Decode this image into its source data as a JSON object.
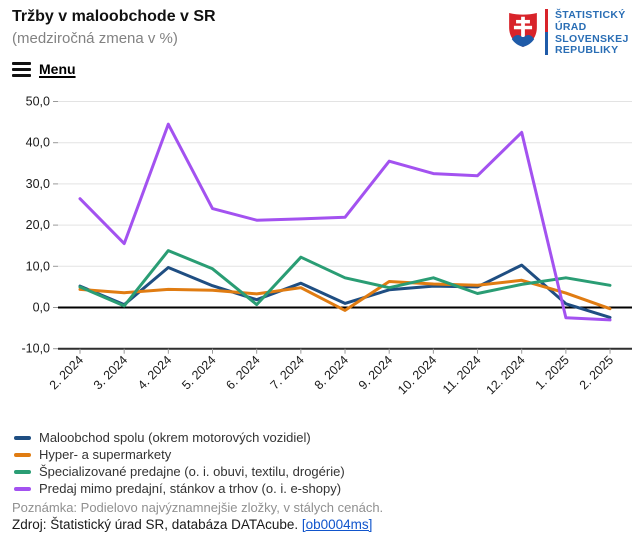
{
  "logo": {
    "lines": [
      "ŠTATISTICKÝ",
      "ÚRAD",
      "SLOVENSKEJ",
      "REPUBLIKY"
    ],
    "text_color": "#2a6eb5",
    "shield_red": "#d8232a",
    "shield_blue": "#1f5ba8"
  },
  "menu": {
    "label": "Menu"
  },
  "chart_data": {
    "type": "line",
    "title": "Tržby v maloobchode v SR",
    "subtitle": "(medziročná zmena v %)",
    "categories": [
      "2. 2024",
      "3. 2024",
      "4. 2024",
      "5. 2024",
      "6. 2024",
      "7. 2024",
      "8. 2024",
      "9. 2024",
      "10. 2024",
      "11. 2024",
      "12. 2024",
      "1. 2025",
      "2. 2025"
    ],
    "series": [
      {
        "name": "Maloobchod spolu (okrem motorových vozidiel)",
        "color": "#1f4e82",
        "values": [
          5.2,
          0.7,
          9.7,
          5.3,
          1.9,
          5.9,
          1.0,
          4.3,
          5.2,
          5.0,
          10.3,
          0.9,
          -2.4
        ]
      },
      {
        "name": "Hyper- a supermarkety",
        "color": "#e07c12",
        "values": [
          4.4,
          3.6,
          4.4,
          4.2,
          3.3,
          4.8,
          -0.7,
          6.3,
          5.7,
          5.4,
          6.6,
          3.5,
          -0.3
        ]
      },
      {
        "name": "Špecializované predajne (o. i. obuvi, textilu, drogérie)",
        "color": "#2a9d74",
        "values": [
          5.0,
          0.4,
          13.8,
          9.4,
          0.7,
          12.2,
          7.2,
          4.8,
          7.2,
          3.4,
          5.6,
          7.2,
          5.4
        ]
      },
      {
        "name": "Predaj mimo predajní, stánkov a trhov (o. i. e-shopy)",
        "color": "#a352f0",
        "values": [
          26.4,
          15.5,
          44.5,
          24.0,
          21.2,
          21.5,
          21.9,
          35.5,
          32.5,
          32.0,
          42.5,
          -2.5,
          -3.0
        ]
      }
    ],
    "ylim": [
      -10,
      50
    ],
    "yticks": [
      50,
      40,
      30,
      20,
      10,
      0,
      -10
    ],
    "ytick_labels": [
      "50,0",
      "40,0",
      "30,0",
      "20,0",
      "10,0",
      "0,0",
      "-10,0"
    ],
    "grid": true,
    "zero_line": true,
    "legend_position": "bottom"
  },
  "note": "Poznámka: Podielovo najvýznamnejšie zložky, v stálych cenách.",
  "source": {
    "prefix": "Zdroj: Štatistický úrad SR, databáza DATAcube. ",
    "link_label": "[ob0004ms]"
  }
}
